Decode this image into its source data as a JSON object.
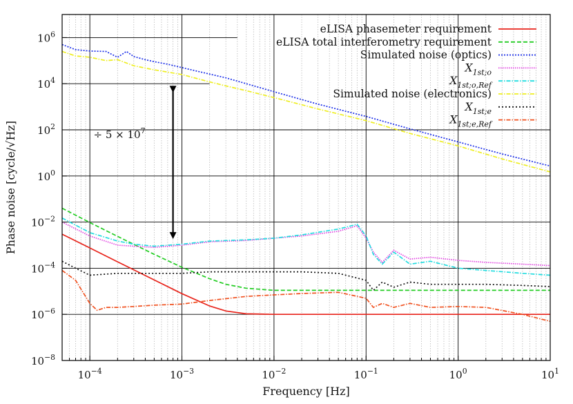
{
  "chart_data": {
    "type": "line",
    "title": "",
    "xlabel": "Frequency [Hz]",
    "ylabel": "Phase noise [cycle/√Hz]",
    "xscale": "log",
    "yscale": "log",
    "xlim": [
      5e-05,
      10
    ],
    "ylim": [
      1e-08,
      10000000
    ],
    "x_ticks": [
      {
        "value": 0.0001,
        "base": "10",
        "exp": "−4"
      },
      {
        "value": 0.001,
        "base": "10",
        "exp": "−3"
      },
      {
        "value": 0.01,
        "base": "10",
        "exp": "−2"
      },
      {
        "value": 0.1,
        "base": "10",
        "exp": "−1"
      },
      {
        "value": 1,
        "base": "10",
        "exp": "0"
      },
      {
        "value": 10,
        "base": "10",
        "exp": "1"
      }
    ],
    "y_ticks": [
      {
        "value": 1e-08,
        "base": "10",
        "exp": "−8"
      },
      {
        "value": 1e-06,
        "base": "10",
        "exp": "−6"
      },
      {
        "value": 0.0001,
        "base": "10",
        "exp": "−4"
      },
      {
        "value": 0.01,
        "base": "10",
        "exp": "−2"
      },
      {
        "value": 1,
        "base": "10",
        "exp": "0"
      },
      {
        "value": 100,
        "base": "10",
        "exp": "2"
      },
      {
        "value": 10000,
        "base": "10",
        "exp": "4"
      },
      {
        "value": 1000000,
        "base": "10",
        "exp": "6"
      }
    ],
    "legend_position": "top-right",
    "annotation": {
      "prefix": "÷ 5 × 10",
      "exp": "7",
      "arrow_x": 0.0008,
      "arrow_from": 10000,
      "arrow_to": 0.0015
    },
    "series": [
      {
        "name": "eLISA phasemeter requirement",
        "label_main": "eLISA phasemeter requirement",
        "label_sub": "",
        "label_italic": false,
        "color": "#e8231a",
        "dash": "",
        "x": [
          5e-05,
          0.0001,
          0.0002,
          0.0005,
          0.001,
          0.002,
          0.003,
          0.005,
          0.01,
          0.1,
          1,
          10
        ],
        "y": [
          0.003,
          0.00076,
          0.00019,
          3.1e-05,
          7.9e-06,
          2.3e-06,
          1.4e-06,
          1.06e-06,
          1e-06,
          1e-06,
          1e-06,
          1e-06
        ]
      },
      {
        "name": "eLISA total interferometry requirement",
        "label_main": "eLISA total interferometry requirement",
        "label_sub": "",
        "label_italic": false,
        "color": "#22cc22",
        "dash": "6,3",
        "x": [
          5e-05,
          0.0001,
          0.0002,
          0.0005,
          0.001,
          0.002,
          0.003,
          0.005,
          0.01,
          0.1,
          1,
          10
        ],
        "y": [
          0.04,
          0.0096,
          0.0024,
          0.0004,
          0.00011,
          3.5e-05,
          2e-05,
          1.35e-05,
          1.1e-05,
          1.1e-05,
          1.1e-05,
          1.1e-05
        ]
      },
      {
        "name": "Simulated noise (optics)",
        "label_main": "Simulated noise (optics)",
        "label_sub": "",
        "label_italic": false,
        "color": "#1a2ee8",
        "dash": "2,2",
        "x": [
          5e-05,
          7e-05,
          0.0001,
          0.00015,
          0.0002,
          0.00025,
          0.0003,
          0.0004,
          0.0005,
          0.0007,
          0.001,
          0.002,
          0.003,
          0.005,
          0.01,
          0.03,
          0.1,
          0.3,
          1,
          3,
          10
        ],
        "y": [
          500000.0,
          300000.0,
          260000.0,
          250000.0,
          140000.0,
          250000.0,
          150000.0,
          110000.0,
          90000.0,
          70000.0,
          50000.0,
          26000.0,
          18000.0,
          10000.0,
          4500.0,
          1300.0,
          380,
          110,
          30,
          9,
          2.7
        ]
      },
      {
        "name": "X1st;o",
        "label_main": "X",
        "label_sub": "1st;o",
        "label_italic": true,
        "color": "#e040e0",
        "dash": "1.5,1.5",
        "x": [
          5e-05,
          0.0001,
          0.0002,
          0.0003,
          0.0005,
          0.001,
          0.002,
          0.005,
          0.01,
          0.02,
          0.05,
          0.08,
          0.1,
          0.12,
          0.15,
          0.2,
          0.3,
          0.5,
          1,
          2,
          5,
          10
        ],
        "y": [
          0.01,
          0.0025,
          0.001,
          0.0009,
          0.0008,
          0.001,
          0.0014,
          0.0016,
          0.002,
          0.0025,
          0.004,
          0.007,
          0.002,
          0.0005,
          0.00018,
          0.0006,
          0.00025,
          0.0003,
          0.00022,
          0.00018,
          0.00015,
          0.00013
        ]
      },
      {
        "name": "X1st;o,Ref",
        "label_main": "X",
        "label_sub": "1st;o,Ref",
        "label_italic": true,
        "color": "#22dde0",
        "dash": "6,2,1.5,2",
        "x": [
          5e-05,
          0.0001,
          0.0002,
          0.0003,
          0.0005,
          0.001,
          0.002,
          0.005,
          0.01,
          0.02,
          0.05,
          0.08,
          0.1,
          0.12,
          0.15,
          0.2,
          0.3,
          0.5,
          1,
          2,
          5,
          10
        ],
        "y": [
          0.015,
          0.0035,
          0.0015,
          0.0011,
          0.0009,
          0.0011,
          0.0015,
          0.0017,
          0.002,
          0.0028,
          0.005,
          0.008,
          0.0025,
          0.0004,
          0.00015,
          0.0005,
          0.00015,
          0.0002,
          0.0001,
          8e-05,
          6e-05,
          5e-05
        ]
      },
      {
        "name": "Simulated noise (electronics)",
        "label_main": "Simulated noise (electronics)",
        "label_sub": "",
        "label_italic": false,
        "color": "#eeee20",
        "dash": "6,2,1.5,2",
        "x": [
          5e-05,
          7e-05,
          0.0001,
          0.00015,
          0.0002,
          0.0003,
          0.0005,
          0.001,
          0.002,
          0.003,
          0.005,
          0.01,
          0.03,
          0.1,
          0.3,
          1,
          3,
          10
        ],
        "y": [
          250000.0,
          160000.0,
          140000.0,
          100000.0,
          110000.0,
          60000.0,
          40000.0,
          25000.0,
          12000.0,
          8000.0,
          5000.0,
          2500.0,
          800,
          250,
          70,
          20,
          5.5,
          1.5
        ]
      },
      {
        "name": "X1st;e",
        "label_main": "X",
        "label_sub": "1st;e",
        "label_italic": true,
        "color": "#111111",
        "dash": "2,3",
        "x": [
          5e-05,
          7e-05,
          0.0001,
          0.0002,
          0.0003,
          0.0005,
          0.001,
          0.002,
          0.005,
          0.01,
          0.02,
          0.05,
          0.1,
          0.12,
          0.15,
          0.2,
          0.3,
          0.5,
          1,
          2,
          5,
          10
        ],
        "y": [
          0.0002,
          0.0001,
          5e-05,
          6e-05,
          6e-05,
          6e-05,
          6e-05,
          7e-05,
          7e-05,
          7e-05,
          7e-05,
          6e-05,
          3e-05,
          1.1e-05,
          2.5e-05,
          1.5e-05,
          2.5e-05,
          2e-05,
          2e-05,
          2e-05,
          1.8e-05,
          1.6e-05
        ]
      },
      {
        "name": "X1st;e,Ref",
        "label_main": "X",
        "label_sub": "1st;e,Ref",
        "label_italic": true,
        "color": "#f0501e",
        "dash": "6,2,1.5,2",
        "x": [
          5e-05,
          7e-05,
          0.0001,
          0.00012,
          0.00015,
          0.0002,
          0.0003,
          0.0005,
          0.001,
          0.002,
          0.005,
          0.01,
          0.02,
          0.05,
          0.1,
          0.12,
          0.15,
          0.2,
          0.3,
          0.5,
          1,
          2,
          5,
          10
        ],
        "y": [
          8e-05,
          3e-05,
          3e-06,
          1.5e-06,
          2e-06,
          2e-06,
          2.2e-06,
          2.5e-06,
          2.8e-06,
          4e-06,
          6e-06,
          7e-06,
          8e-06,
          9e-06,
          5e-06,
          2e-06,
          3e-06,
          2e-06,
          3e-06,
          2e-06,
          2.2e-06,
          2e-06,
          1e-06,
          5e-07
        ]
      }
    ]
  }
}
